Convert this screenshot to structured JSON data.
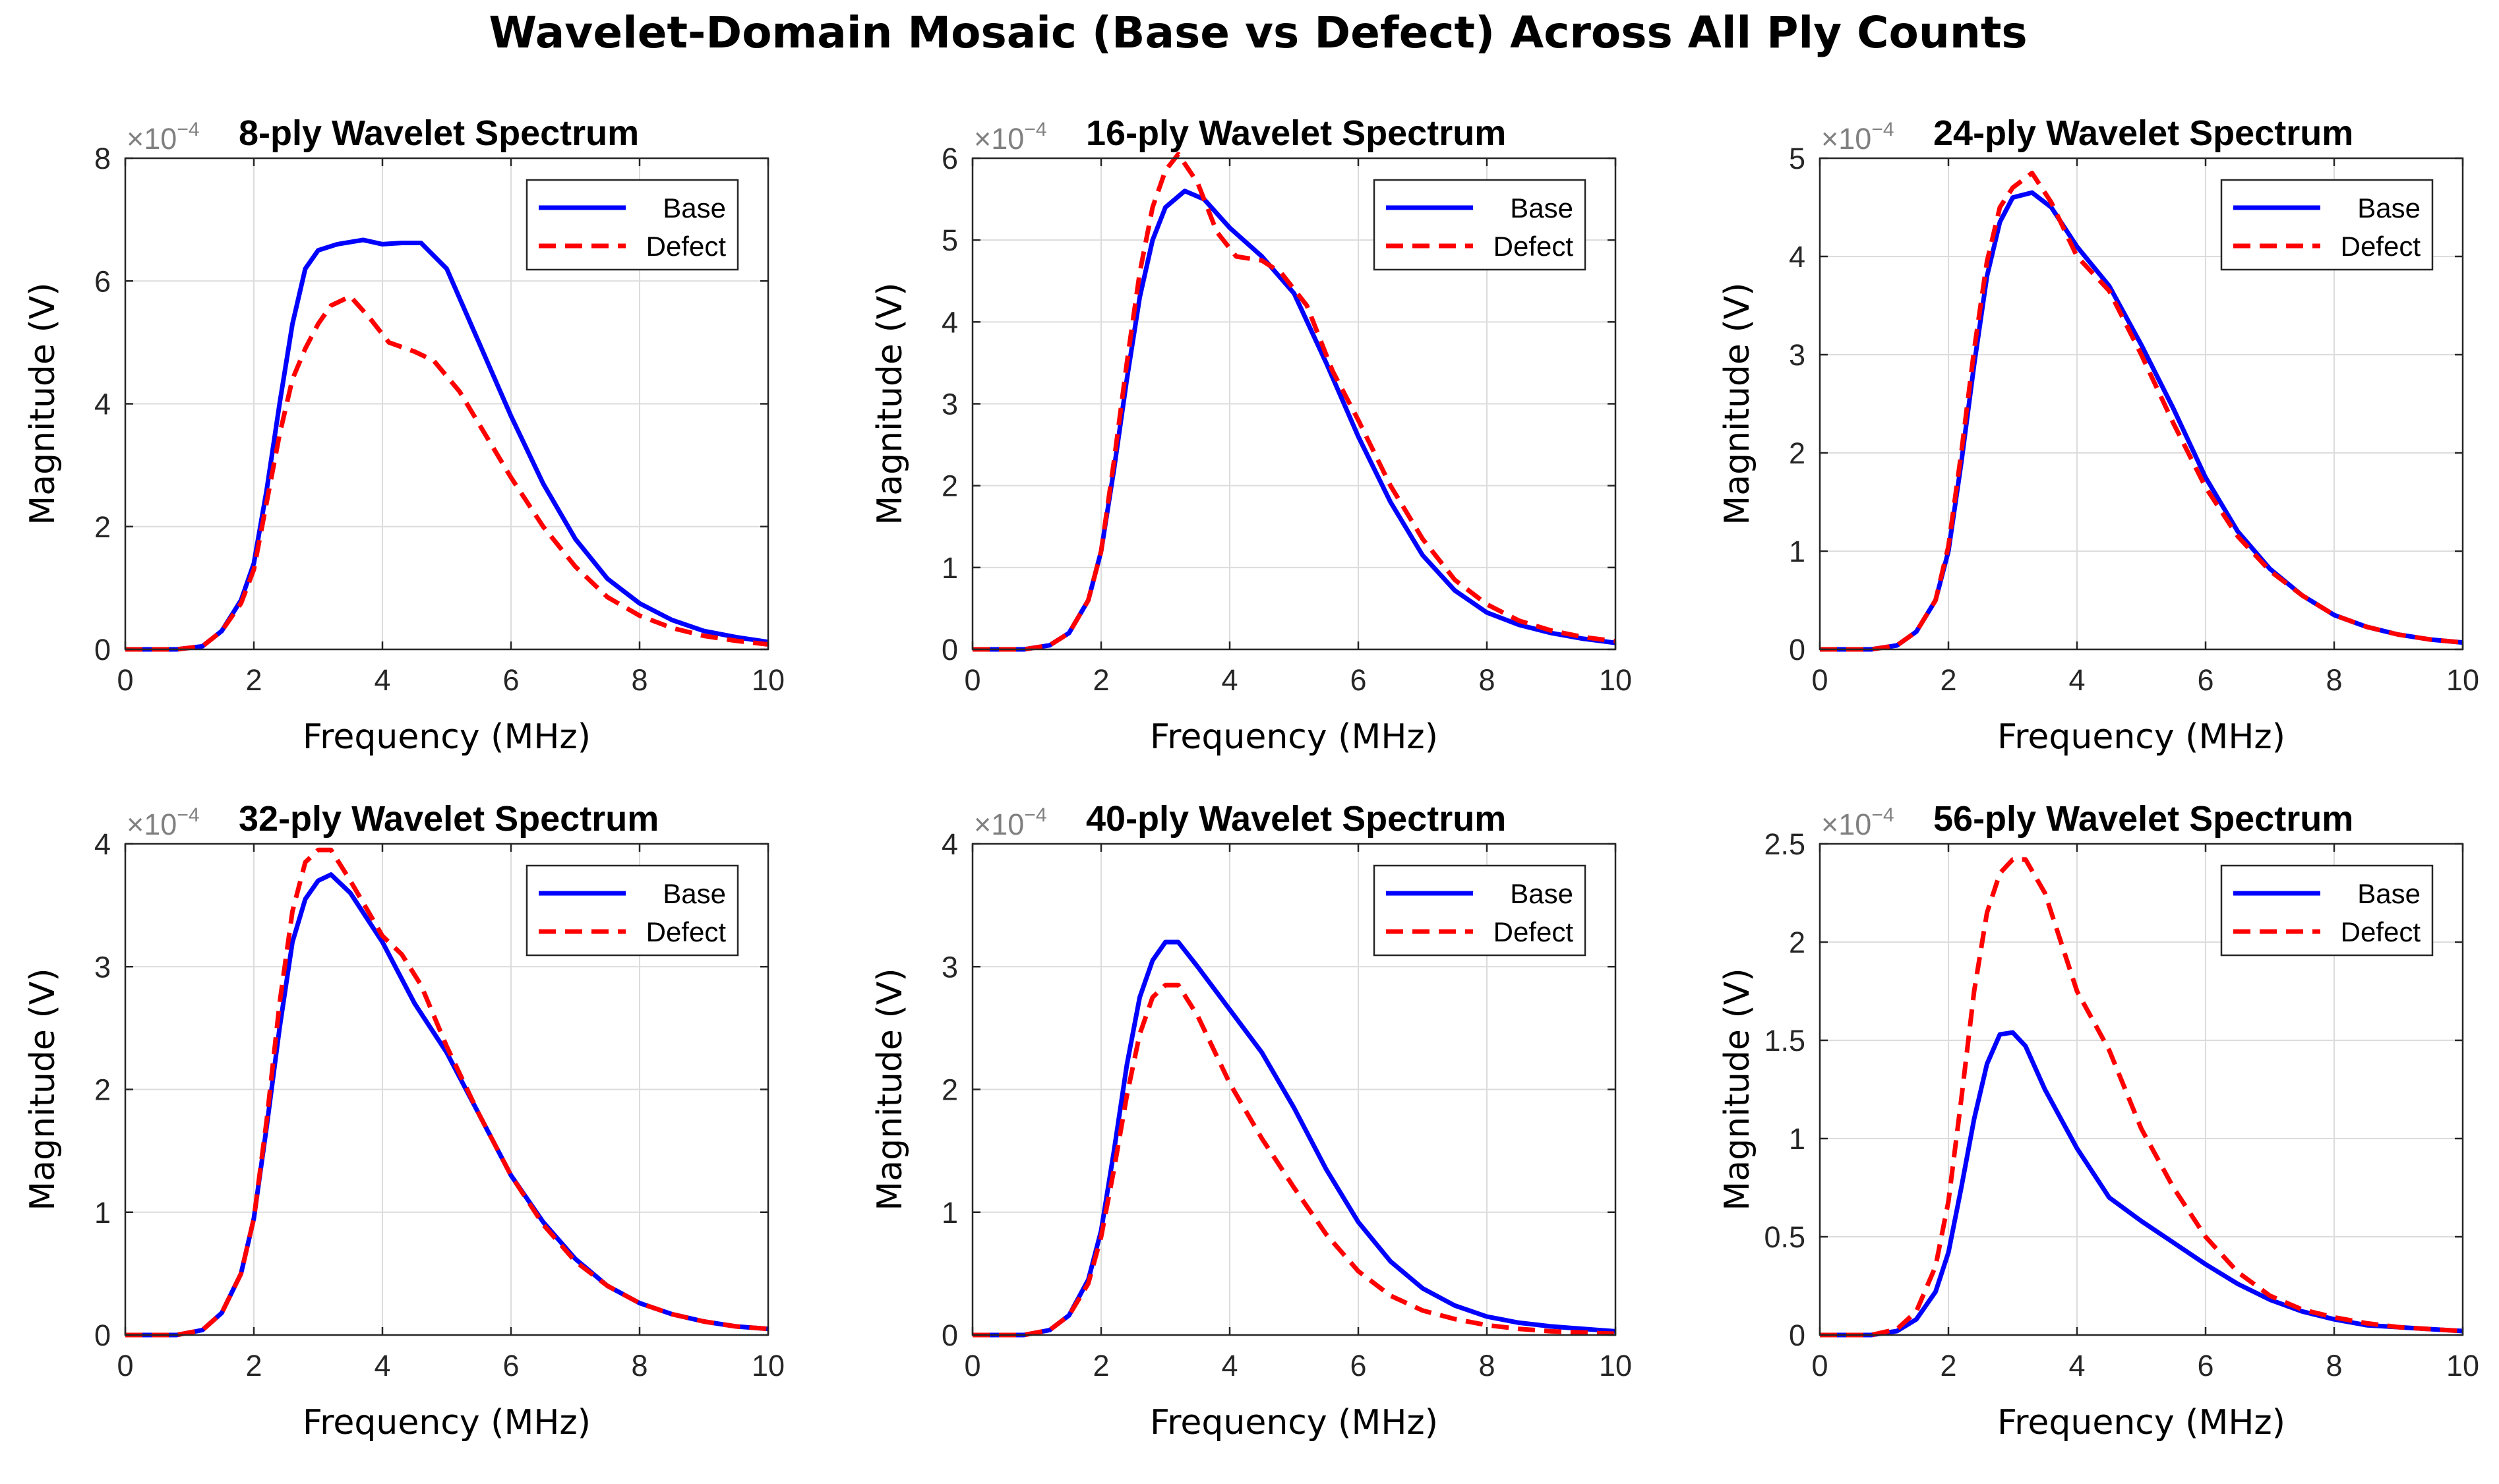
{
  "figure_title": "Wavelet-Domain Mosaic (Base vs Defect) Across All Ply Counts",
  "colors": {
    "base": "#0000ff",
    "defect": "#ff0000",
    "grid": "#dcdcdc",
    "axis": "#262626"
  },
  "chart_data": [
    {
      "type": "line",
      "title": "8-ply Wavelet Spectrum",
      "xlabel": "Frequency (MHz)",
      "ylabel": "Magnitude (V)",
      "exponent_label": "×10",
      "exponent_power": "−4",
      "xlim": [
        0,
        10
      ],
      "ylim": [
        0,
        8
      ],
      "xticks": [
        0,
        2,
        4,
        6,
        8,
        10
      ],
      "xticklabels": [
        "0",
        "2",
        "4",
        "6",
        "8",
        "10"
      ],
      "yticks": [
        0,
        2,
        4,
        6,
        8
      ],
      "yticklabels": [
        "0",
        "2",
        "4",
        "6",
        "8"
      ],
      "legend_position": "top-right",
      "grid": true,
      "series": [
        {
          "name": "Base",
          "style": "solid",
          "x": [
            0,
            0.8,
            1.2,
            1.5,
            1.8,
            2.0,
            2.2,
            2.4,
            2.6,
            2.8,
            3.0,
            3.3,
            3.7,
            4.0,
            4.3,
            4.6,
            5.0,
            5.5,
            6.0,
            6.5,
            7.0,
            7.5,
            8.0,
            8.5,
            9.0,
            9.5,
            10.0
          ],
          "y": [
            0,
            0,
            0.05,
            0.3,
            0.8,
            1.4,
            2.6,
            4.0,
            5.3,
            6.2,
            6.5,
            6.6,
            6.67,
            6.6,
            6.62,
            6.62,
            6.2,
            5.0,
            3.8,
            2.7,
            1.8,
            1.15,
            0.75,
            0.48,
            0.3,
            0.2,
            0.12
          ]
        },
        {
          "name": "Defect",
          "style": "dashed",
          "x": [
            0,
            0.8,
            1.2,
            1.5,
            1.8,
            2.0,
            2.2,
            2.4,
            2.6,
            2.8,
            3.0,
            3.2,
            3.5,
            3.8,
            4.1,
            4.5,
            4.8,
            5.2,
            5.6,
            6.0,
            6.5,
            7.0,
            7.5,
            8.0,
            8.5,
            9.0,
            9.5,
            10.0
          ],
          "y": [
            0,
            0,
            0.05,
            0.3,
            0.75,
            1.3,
            2.4,
            3.5,
            4.4,
            4.9,
            5.3,
            5.6,
            5.75,
            5.4,
            5.0,
            4.85,
            4.7,
            4.2,
            3.5,
            2.8,
            2.0,
            1.35,
            0.85,
            0.55,
            0.35,
            0.22,
            0.14,
            0.08
          ]
        }
      ]
    },
    {
      "type": "line",
      "title": "16-ply Wavelet Spectrum",
      "xlabel": "Frequency (MHz)",
      "ylabel": "Magnitude (V)",
      "exponent_label": "×10",
      "exponent_power": "−4",
      "xlim": [
        0,
        10
      ],
      "ylim": [
        0,
        6
      ],
      "xticks": [
        0,
        2,
        4,
        6,
        8,
        10
      ],
      "xticklabels": [
        "0",
        "2",
        "4",
        "6",
        "8",
        "10"
      ],
      "yticks": [
        0,
        1,
        2,
        3,
        4,
        5,
        6
      ],
      "yticklabels": [
        "0",
        "1",
        "2",
        "3",
        "4",
        "5",
        "6"
      ],
      "legend_position": "top-right",
      "grid": true,
      "series": [
        {
          "name": "Base",
          "style": "solid",
          "x": [
            0,
            0.8,
            1.2,
            1.5,
            1.8,
            2.0,
            2.2,
            2.4,
            2.6,
            2.8,
            3.0,
            3.3,
            3.6,
            4.0,
            4.5,
            5.0,
            5.5,
            6.0,
            6.5,
            7.0,
            7.5,
            8.0,
            8.5,
            9.0,
            9.5,
            10.0
          ],
          "y": [
            0,
            0,
            0.05,
            0.2,
            0.6,
            1.2,
            2.2,
            3.3,
            4.3,
            5.0,
            5.4,
            5.6,
            5.5,
            5.15,
            4.8,
            4.35,
            3.5,
            2.6,
            1.8,
            1.15,
            0.72,
            0.45,
            0.3,
            0.2,
            0.13,
            0.08
          ]
        },
        {
          "name": "Defect",
          "style": "dashed",
          "x": [
            0,
            0.8,
            1.2,
            1.5,
            1.8,
            2.0,
            2.2,
            2.4,
            2.6,
            2.8,
            3.0,
            3.2,
            3.5,
            3.8,
            4.1,
            4.5,
            4.8,
            5.2,
            5.6,
            6.0,
            6.5,
            7.0,
            7.5,
            8.0,
            8.5,
            9.0,
            9.5,
            10.0
          ],
          "y": [
            0,
            0,
            0.05,
            0.2,
            0.6,
            1.2,
            2.3,
            3.5,
            4.6,
            5.4,
            5.85,
            6.05,
            5.7,
            5.1,
            4.8,
            4.75,
            4.6,
            4.2,
            3.4,
            2.8,
            2.0,
            1.35,
            0.85,
            0.55,
            0.35,
            0.23,
            0.15,
            0.1
          ]
        }
      ]
    },
    {
      "type": "line",
      "title": "24-ply Wavelet Spectrum",
      "xlabel": "Frequency (MHz)",
      "ylabel": "Magnitude (V)",
      "exponent_label": "×10",
      "exponent_power": "−4",
      "xlim": [
        0,
        10
      ],
      "ylim": [
        0,
        5
      ],
      "xticks": [
        0,
        2,
        4,
        6,
        8,
        10
      ],
      "xticklabels": [
        "0",
        "2",
        "4",
        "6",
        "8",
        "10"
      ],
      "yticks": [
        0,
        1,
        2,
        3,
        4,
        5
      ],
      "yticklabels": [
        "0",
        "1",
        "2",
        "3",
        "4",
        "5"
      ],
      "legend_position": "top-right",
      "grid": true,
      "series": [
        {
          "name": "Base",
          "style": "solid",
          "x": [
            0,
            0.8,
            1.2,
            1.5,
            1.8,
            2.0,
            2.2,
            2.4,
            2.6,
            2.8,
            3.0,
            3.3,
            3.6,
            4.0,
            4.5,
            5.0,
            5.5,
            6.0,
            6.5,
            7.0,
            7.5,
            8.0,
            8.5,
            9.0,
            9.5,
            10.0
          ],
          "y": [
            0,
            0,
            0.04,
            0.18,
            0.5,
            1.0,
            1.9,
            2.9,
            3.8,
            4.35,
            4.6,
            4.65,
            4.5,
            4.1,
            3.7,
            3.1,
            2.45,
            1.75,
            1.2,
            0.82,
            0.55,
            0.35,
            0.23,
            0.15,
            0.1,
            0.07
          ]
        },
        {
          "name": "Defect",
          "style": "dashed",
          "x": [
            0,
            0.8,
            1.2,
            1.5,
            1.8,
            2.0,
            2.2,
            2.4,
            2.6,
            2.8,
            3.0,
            3.3,
            3.6,
            4.0,
            4.5,
            5.0,
            5.5,
            6.0,
            6.5,
            7.0,
            7.5,
            8.0,
            8.5,
            9.0,
            9.5,
            10.0
          ],
          "y": [
            0,
            0,
            0.04,
            0.18,
            0.5,
            1.05,
            2.0,
            3.05,
            3.95,
            4.5,
            4.7,
            4.85,
            4.55,
            4.0,
            3.65,
            3.0,
            2.3,
            1.65,
            1.15,
            0.8,
            0.55,
            0.35,
            0.23,
            0.15,
            0.1,
            0.07
          ]
        }
      ]
    },
    {
      "type": "line",
      "title": "32-ply Wavelet Spectrum",
      "xlabel": "Frequency (MHz)",
      "ylabel": "Magnitude (V)",
      "exponent_label": "×10",
      "exponent_power": "−4",
      "xlim": [
        0,
        10
      ],
      "ylim": [
        0,
        4
      ],
      "xticks": [
        0,
        2,
        4,
        6,
        8,
        10
      ],
      "xticklabels": [
        "0",
        "2",
        "4",
        "6",
        "8",
        "10"
      ],
      "yticks": [
        0,
        1,
        2,
        3,
        4
      ],
      "yticklabels": [
        "0",
        "1",
        "2",
        "3",
        "4"
      ],
      "legend_position": "top-right",
      "grid": true,
      "series": [
        {
          "name": "Base",
          "style": "solid",
          "x": [
            0,
            0.8,
            1.2,
            1.5,
            1.8,
            2.0,
            2.2,
            2.4,
            2.6,
            2.8,
            3.0,
            3.2,
            3.5,
            4.0,
            4.5,
            5.0,
            5.5,
            6.0,
            6.5,
            7.0,
            7.5,
            8.0,
            8.5,
            9.0,
            9.5,
            10.0
          ],
          "y": [
            0,
            0,
            0.04,
            0.18,
            0.5,
            0.95,
            1.7,
            2.5,
            3.2,
            3.55,
            3.7,
            3.75,
            3.6,
            3.2,
            2.7,
            2.3,
            1.8,
            1.3,
            0.92,
            0.62,
            0.4,
            0.26,
            0.17,
            0.11,
            0.07,
            0.05
          ]
        },
        {
          "name": "Defect",
          "style": "dashed",
          "x": [
            0,
            0.8,
            1.2,
            1.5,
            1.8,
            2.0,
            2.2,
            2.4,
            2.6,
            2.8,
            3.0,
            3.2,
            3.5,
            4.0,
            4.3,
            4.6,
            5.0,
            5.5,
            6.0,
            6.5,
            7.0,
            7.5,
            8.0,
            8.5,
            9.0,
            9.5,
            10.0
          ],
          "y": [
            0,
            0,
            0.04,
            0.18,
            0.5,
            0.95,
            1.75,
            2.7,
            3.45,
            3.85,
            3.95,
            3.95,
            3.7,
            3.25,
            3.1,
            2.85,
            2.35,
            1.8,
            1.3,
            0.9,
            0.6,
            0.4,
            0.26,
            0.17,
            0.11,
            0.07,
            0.05
          ]
        }
      ]
    },
    {
      "type": "line",
      "title": "40-ply Wavelet Spectrum",
      "xlabel": "Frequency (MHz)",
      "ylabel": "Magnitude (V)",
      "exponent_label": "×10",
      "exponent_power": "−4",
      "xlim": [
        0,
        10
      ],
      "ylim": [
        0,
        4
      ],
      "xticks": [
        0,
        2,
        4,
        6,
        8,
        10
      ],
      "xticklabels": [
        "0",
        "2",
        "4",
        "6",
        "8",
        "10"
      ],
      "yticks": [
        0,
        1,
        2,
        3,
        4
      ],
      "yticklabels": [
        "0",
        "1",
        "2",
        "3",
        "4"
      ],
      "legend_position": "top-right",
      "grid": true,
      "series": [
        {
          "name": "Base",
          "style": "solid",
          "x": [
            0,
            0.8,
            1.2,
            1.5,
            1.8,
            2.0,
            2.2,
            2.4,
            2.6,
            2.8,
            3.0,
            3.2,
            3.5,
            4.0,
            4.5,
            5.0,
            5.5,
            6.0,
            6.5,
            7.0,
            7.5,
            8.0,
            8.5,
            9.0,
            9.5,
            10.0
          ],
          "y": [
            0,
            0,
            0.04,
            0.16,
            0.45,
            0.85,
            1.5,
            2.2,
            2.75,
            3.05,
            3.2,
            3.2,
            3.0,
            2.65,
            2.3,
            1.85,
            1.35,
            0.92,
            0.6,
            0.38,
            0.24,
            0.15,
            0.1,
            0.07,
            0.05,
            0.03
          ]
        },
        {
          "name": "Defect",
          "style": "dashed",
          "x": [
            0,
            0.8,
            1.2,
            1.5,
            1.8,
            2.0,
            2.2,
            2.4,
            2.6,
            2.8,
            3.0,
            3.2,
            3.5,
            4.0,
            4.5,
            5.0,
            5.5,
            6.0,
            6.5,
            7.0,
            7.5,
            8.0,
            8.5,
            9.0,
            9.5,
            10.0
          ],
          "y": [
            0,
            0,
            0.04,
            0.16,
            0.42,
            0.8,
            1.35,
            1.95,
            2.45,
            2.75,
            2.85,
            2.85,
            2.6,
            2.05,
            1.6,
            1.2,
            0.82,
            0.52,
            0.32,
            0.2,
            0.13,
            0.08,
            0.05,
            0.03,
            0.02,
            0.01
          ]
        }
      ]
    },
    {
      "type": "line",
      "title": "56-ply Wavelet Spectrum",
      "xlabel": "Frequency (MHz)",
      "ylabel": "Magnitude (V)",
      "exponent_label": "×10",
      "exponent_power": "−4",
      "xlim": [
        0,
        10
      ],
      "ylim": [
        0,
        2.5
      ],
      "xticks": [
        0,
        2,
        4,
        6,
        8,
        10
      ],
      "xticklabels": [
        "0",
        "2",
        "4",
        "6",
        "8",
        "10"
      ],
      "yticks": [
        0,
        0.5,
        1,
        1.5,
        2,
        2.5
      ],
      "yticklabels": [
        "0",
        "0.5",
        "1",
        "1.5",
        "2",
        "2.5"
      ],
      "legend_position": "top-right",
      "grid": true,
      "series": [
        {
          "name": "Base",
          "style": "solid",
          "x": [
            0,
            0.8,
            1.2,
            1.5,
            1.8,
            2.0,
            2.2,
            2.4,
            2.6,
            2.8,
            3.0,
            3.2,
            3.5,
            4.0,
            4.5,
            5.0,
            5.5,
            6.0,
            6.5,
            7.0,
            7.5,
            8.0,
            8.5,
            9.0,
            9.5,
            10.0
          ],
          "y": [
            0,
            0,
            0.02,
            0.08,
            0.22,
            0.42,
            0.75,
            1.1,
            1.38,
            1.53,
            1.54,
            1.47,
            1.25,
            0.95,
            0.7,
            0.58,
            0.47,
            0.36,
            0.26,
            0.18,
            0.12,
            0.08,
            0.05,
            0.04,
            0.03,
            0.02
          ]
        },
        {
          "name": "Defect",
          "style": "dashed",
          "x": [
            0,
            0.8,
            1.2,
            1.5,
            1.8,
            2.0,
            2.2,
            2.4,
            2.6,
            2.8,
            3.0,
            3.2,
            3.5,
            4.0,
            4.5,
            5.0,
            5.5,
            6.0,
            6.5,
            7.0,
            7.5,
            8.0,
            8.5,
            9.0,
            9.5,
            10.0
          ],
          "y": [
            0,
            0,
            0.03,
            0.12,
            0.35,
            0.68,
            1.2,
            1.75,
            2.15,
            2.35,
            2.42,
            2.42,
            2.25,
            1.75,
            1.45,
            1.05,
            0.75,
            0.5,
            0.32,
            0.2,
            0.13,
            0.09,
            0.06,
            0.04,
            0.03,
            0.02
          ]
        }
      ]
    }
  ]
}
